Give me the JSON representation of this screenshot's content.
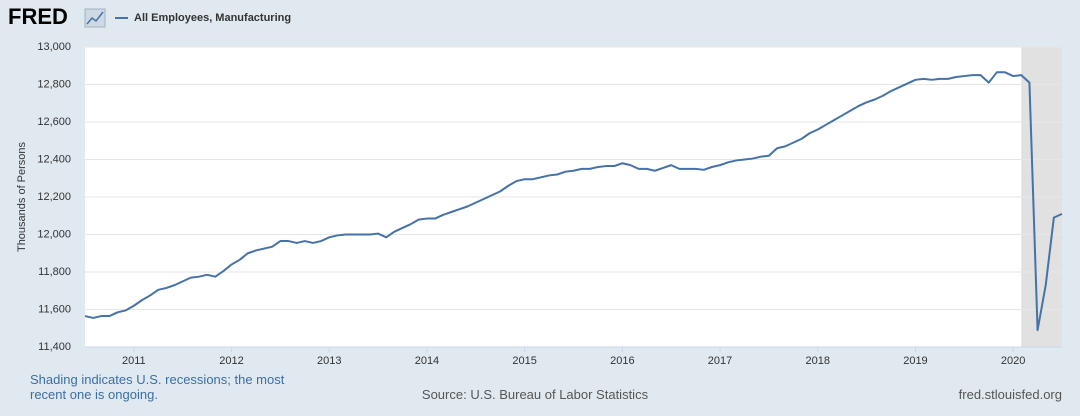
{
  "chart_data": {
    "type": "line",
    "logo": "FRED",
    "ylabel": "Thousands of Persons",
    "note": "Shading indicates U.S. recessions; the most recent one is ongoing.",
    "source": "Source: U.S. Bureau of Labor Statistics",
    "site": "fred.stlouisfed.org",
    "xlim": [
      "2010-07",
      "2020-07"
    ],
    "xticks": [
      2011,
      2012,
      2013,
      2014,
      2015,
      2016,
      2017,
      2018,
      2019,
      2020
    ],
    "ylim": [
      11400,
      13000
    ],
    "yticks": [
      {
        "value": 11400,
        "label": "11,400"
      },
      {
        "value": 11600,
        "label": "11,600"
      },
      {
        "value": 11800,
        "label": "11,800"
      },
      {
        "value": 12000,
        "label": "12,000"
      },
      {
        "value": 12200,
        "label": "12,200"
      },
      {
        "value": 12400,
        "label": "12,400"
      },
      {
        "value": 12600,
        "label": "12,600"
      },
      {
        "value": 12800,
        "label": "12,800"
      },
      {
        "value": 13000,
        "label": "13,000"
      }
    ],
    "grid": true,
    "recession": [
      "2020-02",
      "2020-07"
    ],
    "recession_color": "#e1e1e1",
    "x": [
      "2010-07",
      "2010-08",
      "2010-09",
      "2010-10",
      "2010-11",
      "2010-12",
      "2011-01",
      "2011-02",
      "2011-03",
      "2011-04",
      "2011-05",
      "2011-06",
      "2011-07",
      "2011-08",
      "2011-09",
      "2011-10",
      "2011-11",
      "2011-12",
      "2012-01",
      "2012-02",
      "2012-03",
      "2012-04",
      "2012-05",
      "2012-06",
      "2012-07",
      "2012-08",
      "2012-09",
      "2012-10",
      "2012-11",
      "2012-12",
      "2013-01",
      "2013-02",
      "2013-03",
      "2013-04",
      "2013-05",
      "2013-06",
      "2013-07",
      "2013-08",
      "2013-09",
      "2013-10",
      "2013-11",
      "2013-12",
      "2014-01",
      "2014-02",
      "2014-03",
      "2014-04",
      "2014-05",
      "2014-06",
      "2014-07",
      "2014-08",
      "2014-09",
      "2014-10",
      "2014-11",
      "2014-12",
      "2015-01",
      "2015-02",
      "2015-03",
      "2015-04",
      "2015-05",
      "2015-06",
      "2015-07",
      "2015-08",
      "2015-09",
      "2015-10",
      "2015-11",
      "2015-12",
      "2016-01",
      "2016-02",
      "2016-03",
      "2016-04",
      "2016-05",
      "2016-06",
      "2016-07",
      "2016-08",
      "2016-09",
      "2016-10",
      "2016-11",
      "2016-12",
      "2017-01",
      "2017-02",
      "2017-03",
      "2017-04",
      "2017-05",
      "2017-06",
      "2017-07",
      "2017-08",
      "2017-09",
      "2017-10",
      "2017-11",
      "2017-12",
      "2018-01",
      "2018-02",
      "2018-03",
      "2018-04",
      "2018-05",
      "2018-06",
      "2018-07",
      "2018-08",
      "2018-09",
      "2018-10",
      "2018-11",
      "2018-12",
      "2019-01",
      "2019-02",
      "2019-03",
      "2019-04",
      "2019-05",
      "2019-06",
      "2019-07",
      "2019-08",
      "2019-09",
      "2019-10",
      "2019-11",
      "2019-12",
      "2020-01",
      "2020-02",
      "2020-03",
      "2020-04",
      "2020-05",
      "2020-06",
      "2020-07"
    ],
    "series": [
      {
        "name": "All Employees, Manufacturing",
        "color": "#4572a7",
        "values": [
          11565,
          11555,
          11565,
          11565,
          11585,
          11595,
          11620,
          11650,
          11675,
          11705,
          11715,
          11730,
          11750,
          11770,
          11775,
          11785,
          11775,
          11805,
          11840,
          11865,
          11900,
          11915,
          11925,
          11935,
          11965,
          11965,
          11955,
          11965,
          11955,
          11965,
          11985,
          11995,
          12000,
          12000,
          12000,
          12000,
          12005,
          11985,
          12015,
          12035,
          12055,
          12080,
          12085,
          12085,
          12105,
          12120,
          12135,
          12150,
          12170,
          12190,
          12210,
          12230,
          12260,
          12285,
          12295,
          12295,
          12305,
          12315,
          12320,
          12335,
          12340,
          12350,
          12350,
          12360,
          12365,
          12365,
          12380,
          12370,
          12350,
          12350,
          12340,
          12355,
          12370,
          12350,
          12350,
          12350,
          12345,
          12360,
          12370,
          12385,
          12395,
          12400,
          12405,
          12415,
          12420,
          12460,
          12470,
          12490,
          12510,
          12540,
          12560,
          12585,
          12610,
          12635,
          12660,
          12685,
          12705,
          12720,
          12740,
          12765,
          12785,
          12805,
          12825,
          12830,
          12825,
          12830,
          12830,
          12840,
          12845,
          12850,
          12850,
          12810,
          12865,
          12865,
          12845,
          12850,
          12810,
          11490,
          11730,
          12090,
          12110
        ]
      }
    ]
  }
}
